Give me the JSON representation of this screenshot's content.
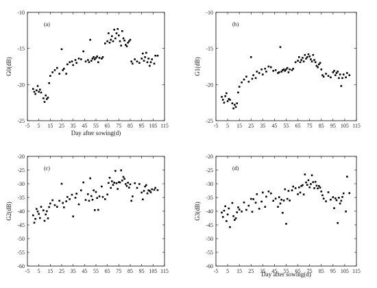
{
  "chart_data": [
    {
      "type": "scatter",
      "panel_label": "(a)",
      "xlabel": "Day after sowing(d)",
      "ylabel": "G0(dB)",
      "xlim": [
        -5,
        115
      ],
      "ylim": [
        -25,
        -10
      ],
      "xticks": [
        -5,
        5,
        15,
        25,
        35,
        45,
        55,
        65,
        75,
        85,
        95,
        105,
        115
      ],
      "yticks": [
        -25,
        -20,
        -15,
        -10
      ],
      "series": [
        {
          "x": [
            0,
            1,
            2,
            3,
            4,
            5,
            6,
            7,
            9,
            10,
            11,
            12,
            13,
            14,
            15,
            17,
            19,
            21,
            23,
            25,
            26,
            27,
            29,
            30,
            32,
            34,
            35,
            37,
            38,
            40,
            42,
            44,
            46,
            48,
            49,
            50,
            51,
            52,
            53,
            54,
            55,
            56,
            57,
            58,
            60,
            61,
            63,
            65,
            66,
            67,
            68,
            69,
            70,
            71,
            72,
            73,
            74,
            75,
            76,
            77,
            78,
            79,
            80,
            81,
            82,
            83,
            84,
            85,
            86,
            87,
            89,
            91,
            93,
            95,
            96,
            97,
            98,
            99,
            100,
            101,
            102,
            103,
            104,
            106,
            107,
            109
          ],
          "y": [
            -20.6,
            -21.0,
            -21.3,
            -20.8,
            -20.2,
            -21.0,
            -20.7,
            -21.1,
            -21.9,
            -22.4,
            -21.5,
            -22.0,
            -21.8,
            -19.8,
            -18.8,
            -18.3,
            -18.0,
            -17.7,
            -18.5,
            -15.1,
            -18.0,
            -17.8,
            -18.5,
            -17.2,
            -16.9,
            -16.8,
            -17.3,
            -16.6,
            -17.0,
            -16.4,
            -16.5,
            -15.4,
            -16.8,
            -16.6,
            -16.9,
            -13.8,
            -16.7,
            -16.4,
            -16.2,
            -16.5,
            -16.3,
            -16.1,
            -16.9,
            -16.3,
            -16.4,
            -16.2,
            -14.3,
            -14.0,
            -12.9,
            -14.2,
            -13.8,
            -13.3,
            -14.0,
            -12.4,
            -13.6,
            -12.9,
            -12.3,
            -13.2,
            -14.0,
            -14.6,
            -12.6,
            -13.6,
            -13.9,
            -14.5,
            -14.7,
            -14.2,
            -14.0,
            -13.8,
            -16.8,
            -17.1,
            -16.5,
            -16.8,
            -17.0,
            -16.4,
            -15.7,
            -16.7,
            -16.2,
            -15.6,
            -16.9,
            -16.4,
            -17.4,
            -16.9,
            -16.5,
            -17.1,
            -16.0,
            -16.0
          ]
        }
      ]
    },
    {
      "type": "scatter",
      "panel_label": "(b)",
      "xlabel": "",
      "ylabel": "G1(dB)",
      "xlim": [
        -5,
        115
      ],
      "ylim": [
        -25,
        -10
      ],
      "xticks": [
        -5,
        5,
        15,
        25,
        35,
        45,
        55,
        65,
        75,
        85,
        95,
        105,
        115
      ],
      "yticks": [
        -25,
        -20,
        -15,
        -10
      ],
      "series": [
        {
          "x": [
            0,
            1,
            2,
            3,
            4,
            5,
            6,
            7,
            9,
            10,
            11,
            12,
            13,
            14,
            15,
            17,
            19,
            21,
            23,
            25,
            26,
            27,
            29,
            30,
            32,
            34,
            35,
            37,
            38,
            40,
            42,
            44,
            46,
            48,
            49,
            50,
            51,
            52,
            53,
            54,
            55,
            56,
            57,
            58,
            60,
            61,
            63,
            65,
            66,
            67,
            68,
            69,
            70,
            71,
            72,
            73,
            74,
            75,
            76,
            77,
            78,
            79,
            80,
            81,
            82,
            83,
            84,
            85,
            86,
            87,
            89,
            91,
            93,
            95,
            96,
            97,
            98,
            99,
            100,
            101,
            102,
            103,
            104,
            106,
            107,
            109
          ],
          "y": [
            -21.7,
            -22.1,
            -22.5,
            -21.6,
            -21.2,
            -22.3,
            -22.0,
            -22.1,
            -22.6,
            -23.3,
            -22.8,
            -23.1,
            -22.6,
            -21.1,
            -20.3,
            -19.7,
            -19.3,
            -18.9,
            -19.6,
            -16.2,
            -19.2,
            -18.7,
            -19.1,
            -18.2,
            -18.4,
            -17.9,
            -18.6,
            -17.8,
            -18.2,
            -17.5,
            -17.6,
            -18.1,
            -18.0,
            -18.4,
            -18.3,
            -14.8,
            -18.2,
            -18.0,
            -17.9,
            -18.1,
            -17.9,
            -17.7,
            -18.3,
            -17.9,
            -18.0,
            -17.8,
            -16.9,
            -16.7,
            -16.2,
            -16.9,
            -16.6,
            -16.3,
            -16.8,
            -15.9,
            -16.4,
            -16.2,
            -15.8,
            -16.1,
            -16.5,
            -16.8,
            -15.9,
            -16.6,
            -16.9,
            -17.4,
            -17.6,
            -17.2,
            -17.0,
            -17.9,
            -18.7,
            -18.9,
            -18.5,
            -18.8,
            -19.0,
            -18.3,
            -18.1,
            -18.7,
            -18.4,
            -18.2,
            -19.1,
            -18.6,
            -20.2,
            -19.1,
            -18.6,
            -19.0,
            -18.4,
            -18.7
          ]
        }
      ]
    },
    {
      "type": "scatter",
      "panel_label": "(c)",
      "xlabel": "",
      "ylabel": "G2(dB)",
      "xlim": [
        -5,
        115
      ],
      "ylim": [
        -60,
        -20
      ],
      "xticks": [
        -5,
        5,
        15,
        25,
        35,
        45,
        55,
        65,
        75,
        85,
        95,
        105,
        115
      ],
      "yticks": [
        -60,
        -55,
        -50,
        -45,
        -40,
        -35,
        -30,
        -25,
        -20
      ],
      "series": [
        {
          "x": [
            0,
            1,
            2,
            3,
            4,
            5,
            6,
            7,
            9,
            10,
            11,
            12,
            13,
            14,
            15,
            17,
            19,
            21,
            23,
            25,
            26,
            27,
            29,
            30,
            32,
            34,
            35,
            37,
            38,
            40,
            42,
            44,
            46,
            48,
            49,
            50,
            51,
            52,
            53,
            54,
            55,
            56,
            57,
            58,
            60,
            61,
            63,
            65,
            66,
            67,
            68,
            69,
            70,
            71,
            72,
            73,
            74,
            75,
            76,
            77,
            78,
            79,
            80,
            81,
            82,
            83,
            84,
            85,
            86,
            87,
            89,
            91,
            93,
            95,
            96,
            97,
            98,
            99,
            100,
            101,
            102,
            103,
            104,
            106,
            107,
            109
          ],
          "y": [
            -41.5,
            -44.2,
            -42.8,
            -39.2,
            -40.1,
            -41.0,
            -42.5,
            -38.4,
            -39.7,
            -43.5,
            -41.2,
            -40.0,
            -42.6,
            -38.5,
            -37.2,
            -36.0,
            -37.8,
            -38.4,
            -36.2,
            -30.0,
            -37.0,
            -38.6,
            -36.4,
            -34.8,
            -35.6,
            -34.0,
            -41.9,
            -35.1,
            -33.6,
            -37.5,
            -32.4,
            -29.5,
            -35.9,
            -33.8,
            -36.2,
            -28.0,
            -34.5,
            -35.8,
            -32.4,
            -39.6,
            -33.0,
            -35.2,
            -39.5,
            -34.6,
            -31.0,
            -34.8,
            -35.6,
            -33.9,
            -29.7,
            -27.8,
            -31.5,
            -29.1,
            -30.4,
            -29.6,
            -25.3,
            -29.8,
            -31.9,
            -29.4,
            -29.5,
            -25.1,
            -28.8,
            -27.5,
            -28.2,
            -30.1,
            -30.8,
            -29.6,
            -31.4,
            -30.2,
            -36.2,
            -34.6,
            -29.8,
            -31.5,
            -30.1,
            -33.2,
            -35.7,
            -32.6,
            -31.0,
            -30.5,
            -33.5,
            -32.4,
            -32.6,
            -33.1,
            -32.0,
            -32.2,
            -31.5,
            -32.3
          ]
        }
      ]
    },
    {
      "type": "scatter",
      "panel_label": "(d)",
      "xlabel": "Day after sowing(d)",
      "ylabel": "G3(dB)",
      "xlim": [
        -5,
        115
      ],
      "ylim": [
        -60,
        -20
      ],
      "xticks": [
        -5,
        5,
        15,
        25,
        35,
        45,
        55,
        65,
        75,
        85,
        95,
        105,
        115
      ],
      "yticks": [
        -60,
        -55,
        -50,
        -45,
        -40,
        -35,
        -30,
        -25,
        -20
      ],
      "series": [
        {
          "x": [
            0,
            1,
            2,
            3,
            4,
            5,
            6,
            7,
            9,
            10,
            11,
            12,
            13,
            14,
            15,
            17,
            19,
            21,
            23,
            25,
            26,
            27,
            29,
            30,
            32,
            34,
            35,
            37,
            38,
            40,
            42,
            44,
            46,
            48,
            49,
            50,
            51,
            52,
            53,
            54,
            55,
            56,
            57,
            58,
            60,
            61,
            63,
            65,
            66,
            67,
            68,
            69,
            70,
            71,
            72,
            73,
            74,
            75,
            76,
            77,
            78,
            79,
            80,
            81,
            82,
            83,
            84,
            85,
            86,
            87,
            89,
            91,
            93,
            95,
            96,
            97,
            98,
            99,
            100,
            101,
            102,
            103,
            104,
            106,
            107,
            109
          ],
          "y": [
            -40.5,
            -42.1,
            -39.8,
            -38.2,
            -43.6,
            -41.2,
            -39.0,
            -45.8,
            -37.0,
            -41.8,
            -43.2,
            -42.6,
            -40.4,
            -38.6,
            -39.4,
            -40.1,
            -36.8,
            -39.5,
            -38.0,
            -35.5,
            -40.2,
            -35.6,
            -36.9,
            -33.8,
            -39.1,
            -36.5,
            -33.2,
            -38.4,
            -34.7,
            -32.8,
            -33.5,
            -36.2,
            -35.4,
            -38.4,
            -34.9,
            -37.2,
            -35.8,
            -40.6,
            -36.1,
            -32.0,
            -44.6,
            -35.5,
            -32.6,
            -36.1,
            -32.4,
            -31.0,
            -31.6,
            -33.8,
            -31.3,
            -33.2,
            -30.8,
            -30.5,
            -33.9,
            -26.6,
            -29.5,
            -30.4,
            -28.7,
            -31.3,
            -30.1,
            -26.9,
            -29.4,
            -31.6,
            -29.3,
            -30.7,
            -31.7,
            -30.8,
            -31.4,
            -32.8,
            -34.2,
            -35.4,
            -36.4,
            -33.1,
            -35.8,
            -34.9,
            -38.9,
            -35.3,
            -36.0,
            -44.3,
            -35.1,
            -37.2,
            -36.2,
            -34.8,
            -33.5,
            -40.1,
            -27.4,
            -33.4
          ]
        }
      ]
    }
  ]
}
